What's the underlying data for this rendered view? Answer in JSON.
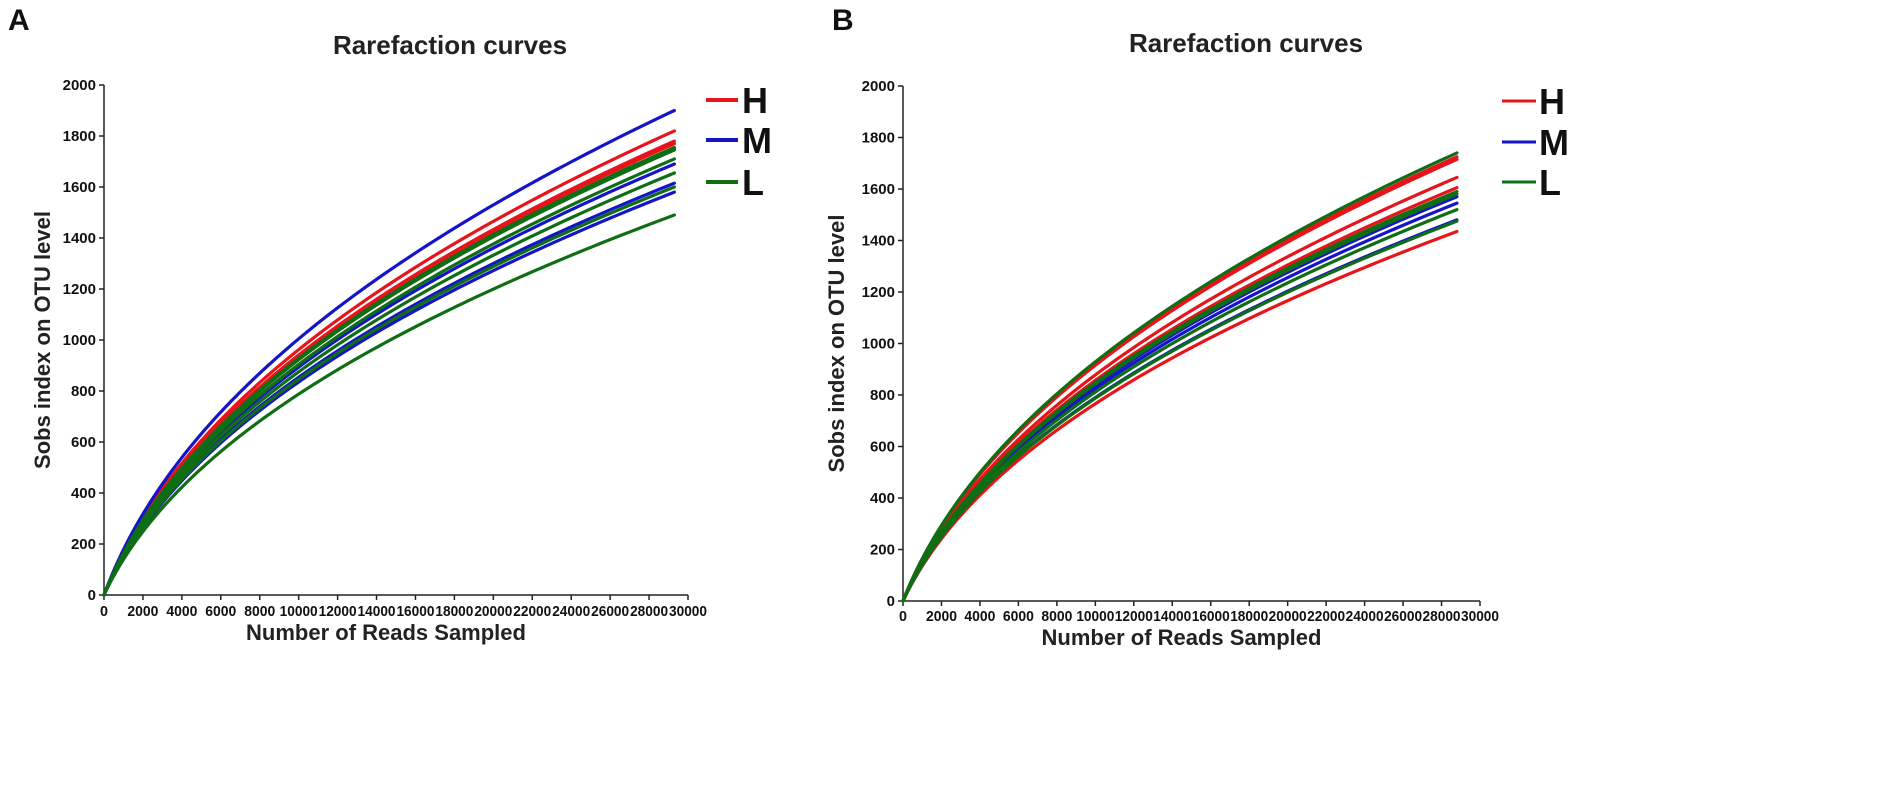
{
  "panels": [
    {
      "letter": "A"
    },
    {
      "letter": "B"
    }
  ],
  "chart_data": [
    {
      "type": "line",
      "title": "Rarefaction curves",
      "xlabel": "Number of Reads Sampled",
      "ylabel": "Sobs index on OTU level",
      "xlim": [
        0,
        30000
      ],
      "ylim": [
        0,
        2000
      ],
      "xticks": [
        "0",
        "2000",
        "4000",
        "6000",
        "8000",
        "10000",
        "12000",
        "14000",
        "16000",
        "18000",
        "20000",
        "22000",
        "24000",
        "26000",
        "28000",
        "30000"
      ],
      "yticks": [
        "0",
        "200",
        "400",
        "600",
        "800",
        "1000",
        "1200",
        "1400",
        "1600",
        "1800",
        "2000"
      ],
      "x_end": 29300,
      "legend": [
        {
          "name": "H",
          "color": "#e8141b"
        },
        {
          "name": "M",
          "color": "#1414c8"
        },
        {
          "name": "L",
          "color": "#0f6e14"
        }
      ],
      "series": [
        {
          "group": "H",
          "final": 1820
        },
        {
          "group": "H",
          "final": 1780
        },
        {
          "group": "H",
          "final": 1770
        },
        {
          "group": "H",
          "final": 1750
        },
        {
          "group": "M",
          "final": 1900
        },
        {
          "group": "M",
          "final": 1690
        },
        {
          "group": "M",
          "final": 1615
        },
        {
          "group": "M",
          "final": 1580
        },
        {
          "group": "L",
          "final": 1755
        },
        {
          "group": "L",
          "final": 1745
        },
        {
          "group": "L",
          "final": 1710
        },
        {
          "group": "L",
          "final": 1655
        },
        {
          "group": "L",
          "final": 1600
        },
        {
          "group": "L",
          "final": 1490
        }
      ]
    },
    {
      "type": "line",
      "title": "Rarefaction curves",
      "xlabel": "Number of Reads Sampled",
      "ylabel": "Sobs index on OTU level",
      "xlim": [
        0,
        30000
      ],
      "ylim": [
        0,
        2000
      ],
      "xticks": [
        "0",
        "2000",
        "4000",
        "6000",
        "8000",
        "10000",
        "12000",
        "14000",
        "16000",
        "18000",
        "20000",
        "22000",
        "24000",
        "26000",
        "28000",
        "30000"
      ],
      "yticks": [
        "0",
        "200",
        "400",
        "600",
        "800",
        "1000",
        "1200",
        "1400",
        "1600",
        "1800",
        "2000"
      ],
      "x_end": 28800,
      "legend": [
        {
          "name": "H",
          "color": "#e8141b"
        },
        {
          "name": "M",
          "color": "#1414c8"
        },
        {
          "name": "L",
          "color": "#0f6e14"
        }
      ],
      "series": [
        {
          "group": "H",
          "final": 1725
        },
        {
          "group": "H",
          "final": 1715
        },
        {
          "group": "H",
          "final": 1645
        },
        {
          "group": "H",
          "final": 1605
        },
        {
          "group": "H",
          "final": 1435
        },
        {
          "group": "M",
          "final": 1570
        },
        {
          "group": "M",
          "final": 1545
        },
        {
          "group": "M",
          "final": 1480
        },
        {
          "group": "L",
          "final": 1740
        },
        {
          "group": "L",
          "final": 1590
        },
        {
          "group": "L",
          "final": 1580
        },
        {
          "group": "L",
          "final": 1520
        },
        {
          "group": "L",
          "final": 1475
        }
      ]
    }
  ]
}
